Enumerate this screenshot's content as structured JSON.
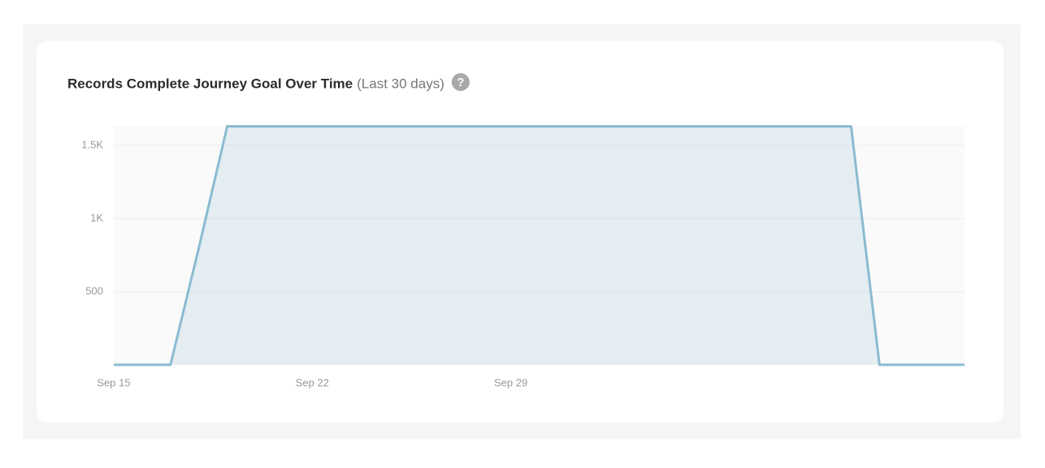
{
  "chart_data": {
    "type": "area",
    "title": "Records Complete Journey Goal Over Time",
    "subtitle": "(Last 30 days)",
    "categories": [
      "Sep 15",
      null,
      null,
      null,
      null,
      null,
      null,
      "Sep 22",
      null,
      null,
      null,
      null,
      null,
      null,
      "Sep 29",
      null,
      null,
      null,
      null,
      null,
      null,
      null,
      null,
      null,
      null,
      null,
      null,
      null,
      null,
      null,
      null
    ],
    "values": [
      0,
      0,
      0,
      800,
      1630,
      1630,
      1630,
      1630,
      1630,
      1630,
      1630,
      1630,
      1630,
      1630,
      1630,
      1630,
      1630,
      1630,
      1630,
      1630,
      1630,
      1630,
      1630,
      1630,
      1630,
      1630,
      1630,
      0,
      0,
      0,
      0
    ],
    "color": "#8bbbd0",
    "ylim": [
      0,
      1633
    ],
    "yticks": [
      500,
      {
        "value": 1000,
        "label": "1K"
      },
      {
        "value": 1500,
        "label": "1.5K"
      }
    ],
    "grid": true
  }
}
